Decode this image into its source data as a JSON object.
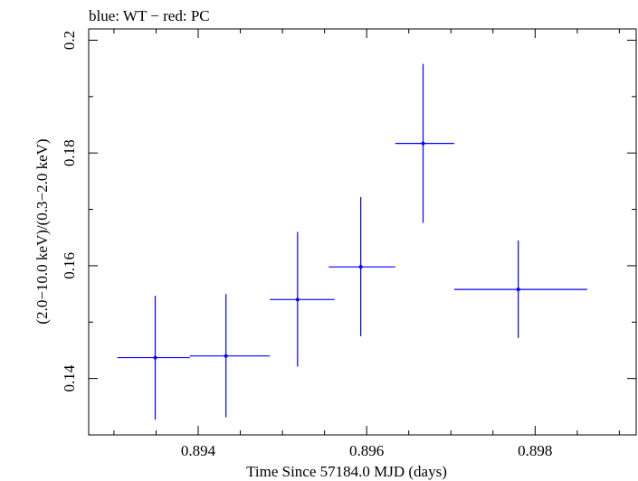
{
  "chart_data": {
    "type": "scatter",
    "title": "blue: WT − red: PC",
    "xlabel": "Time Since 57184.0 MJD (days)",
    "ylabel": "(2.0−10.0 keV)/(0.3−2.0 keV)",
    "xlim": [
      0.8927,
      0.8992
    ],
    "ylim": [
      0.13,
      0.202
    ],
    "x_ticks": [
      {
        "value": 0.894,
        "label": "0.894"
      },
      {
        "value": 0.896,
        "label": "0.896"
      },
      {
        "value": 0.898,
        "label": "0.898"
      }
    ],
    "y_ticks": [
      {
        "value": 0.14,
        "label": "0.14"
      },
      {
        "value": 0.16,
        "label": "0.16"
      },
      {
        "value": 0.18,
        "label": "0.18"
      },
      {
        "value": 0.2,
        "label": "0.2"
      }
    ],
    "x_minor_step": 0.0005,
    "y_minor_step": 0.01,
    "grid": false,
    "series": [
      {
        "color": "#0000ff",
        "points": [
          {
            "x": 0.89349,
            "xerr_low": 0.00045,
            "xerr_high": 0.00041,
            "y": 0.1437,
            "yerr_low": 0.011,
            "yerr_high": 0.011
          },
          {
            "x": 0.89433,
            "xerr_low": 0.00043,
            "xerr_high": 0.00052,
            "y": 0.144,
            "yerr_low": 0.0109,
            "yerr_high": 0.011
          },
          {
            "x": 0.89518,
            "xerr_low": 0.00033,
            "xerr_high": 0.00044,
            "y": 0.154,
            "yerr_low": 0.0119,
            "yerr_high": 0.012
          },
          {
            "x": 0.89593,
            "xerr_low": 0.00038,
            "xerr_high": 0.00041,
            "y": 0.1598,
            "yerr_low": 0.0123,
            "yerr_high": 0.0124
          },
          {
            "x": 0.89667,
            "xerr_low": 0.00033,
            "xerr_high": 0.00037,
            "y": 0.1817,
            "yerr_low": 0.0141,
            "yerr_high": 0.0141
          },
          {
            "x": 0.8978,
            "xerr_low": 0.00076,
            "xerr_high": 0.00082,
            "y": 0.1558,
            "yerr_low": 0.0086,
            "yerr_high": 0.0087
          }
        ]
      }
    ]
  }
}
